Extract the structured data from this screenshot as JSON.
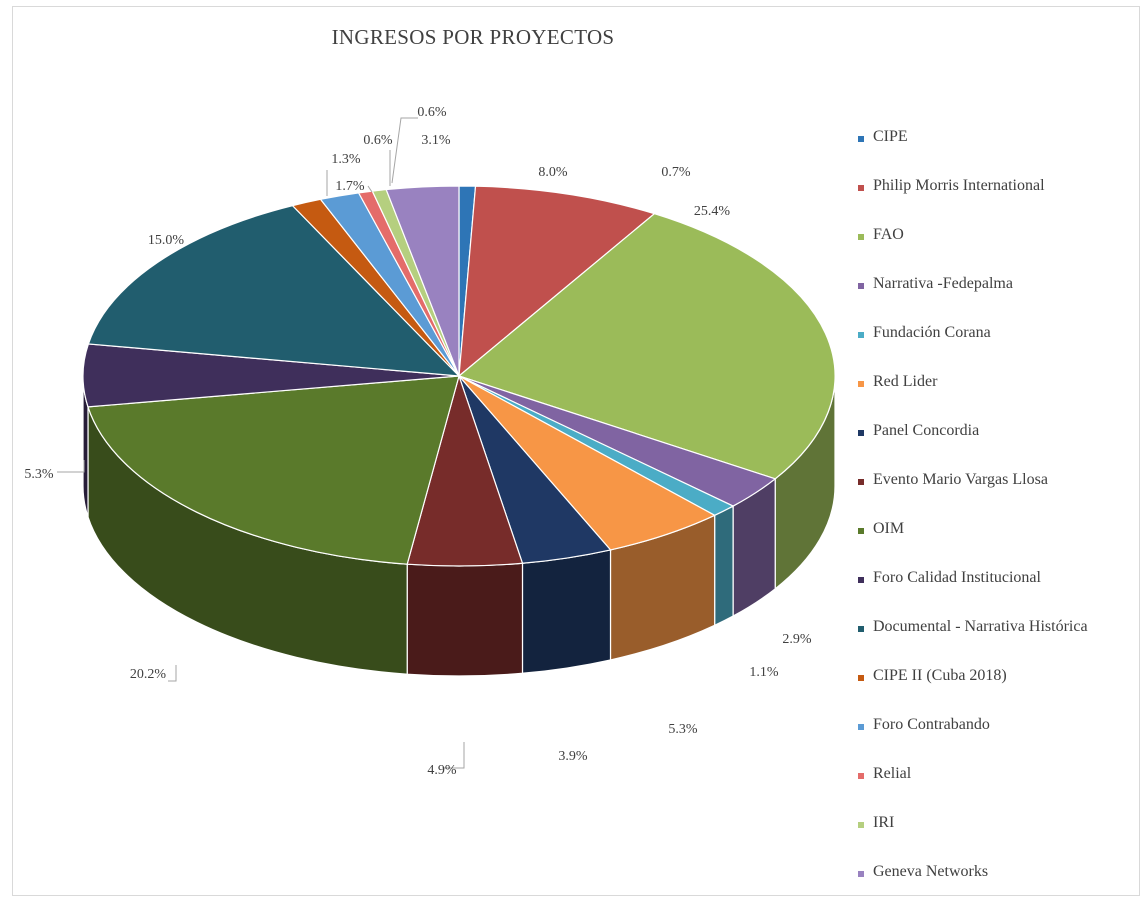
{
  "chart_data": {
    "type": "pie",
    "title": "INGRESOS POR PROYECTOS",
    "slices": [
      {
        "label": "CIPE",
        "value": 0.7,
        "display": "0.7%",
        "color": "#2e75b6"
      },
      {
        "label": "Philip Morris International",
        "value": 8.0,
        "display": "8.0%",
        "color": "#c0504d"
      },
      {
        "label": "FAO",
        "value": 25.4,
        "display": "25.4%",
        "color": "#9bbb59"
      },
      {
        "label": "Narrativa -Fedepalma",
        "value": 2.9,
        "display": "2.9%",
        "color": "#8064a2"
      },
      {
        "label": "Fundación Corana",
        "value": 1.1,
        "display": "1.1%",
        "color": "#4bacc6"
      },
      {
        "label": "Red Lider",
        "value": 5.3,
        "display": "5.3%",
        "color": "#f79646"
      },
      {
        "label": "Panel Concordia",
        "value": 3.9,
        "display": "3.9%",
        "color": "#1f3864"
      },
      {
        "label": "Evento Mario Vargas Llosa",
        "value": 4.9,
        "display": "4.9%",
        "color": "#772c2a"
      },
      {
        "label": "OIM",
        "value": 20.2,
        "display": "20.2%",
        "color": "#5a7a2b"
      },
      {
        "label": "Foro Calidad Institucional",
        "value": 5.3,
        "display": "5.3%",
        "color": "#3f2f5b"
      },
      {
        "label": "Documental - Narrativa Histórica",
        "value": 15.0,
        "display": "15.0%",
        "color": "#215d6e"
      },
      {
        "label": "CIPE II (Cuba 2018)",
        "value": 1.3,
        "display": "1.3%",
        "color": "#c55a11"
      },
      {
        "label": "Foro Contrabando",
        "value": 1.7,
        "display": "1.7%",
        "color": "#5b9bd5"
      },
      {
        "label": "Relial",
        "value": 0.6,
        "display": "0.6%",
        "color": "#e46c6a"
      },
      {
        "label": "IRI",
        "value": 0.6,
        "display": "0.6%",
        "color": "#b5cf7f"
      },
      {
        "label": "Geneva Networks",
        "value": 3.1,
        "display": "3.1%",
        "color": "#9982c0"
      }
    ],
    "legend_position": "right"
  }
}
